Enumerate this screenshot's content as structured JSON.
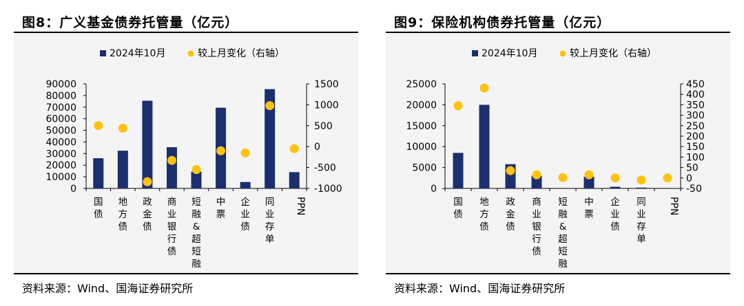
{
  "colors": {
    "bar": "#1b2f6e",
    "dot": "#ffc20e",
    "axis": "#000000",
    "background": "#f4f4f4"
  },
  "figures": [
    {
      "title": "图8：广义基金债券托管量（亿元）",
      "source": "资料来源：Wind、国海证券研究所",
      "chart_data": {
        "type": "bar+scatter",
        "categories": [
          "国债",
          "地方债",
          "政金债",
          "商业银行债",
          "短融&超短融",
          "中票",
          "企业债",
          "同业存单",
          "PPN"
        ],
        "series": [
          {
            "name": "2024年10月",
            "kind": "bar",
            "axis": "left",
            "values": [
              26000,
              32500,
              75500,
              35500,
              14500,
              69500,
              5500,
              85500,
              14000
            ]
          },
          {
            "name": "较上月变化（右轴）",
            "kind": "scatter",
            "axis": "right",
            "values": [
              500,
              440,
              -840,
              -330,
              -550,
              -100,
              -150,
              980,
              -50
            ]
          }
        ],
        "y_left": {
          "min": 0,
          "max": 90000,
          "ticks": [
            0,
            10000,
            20000,
            30000,
            40000,
            50000,
            60000,
            70000,
            80000,
            90000
          ]
        },
        "y_right": {
          "min": -1000,
          "max": 1500,
          "ticks": [
            -1000,
            -500,
            0,
            500,
            1000,
            1500
          ]
        },
        "legend_position": "top"
      }
    },
    {
      "title": "图9：保险机构债券托管量（亿元）",
      "source": "资料来源：Wind、国海证券研究所",
      "chart_data": {
        "type": "bar+scatter",
        "categories": [
          "国债",
          "地方债",
          "政金债",
          "商业银行债",
          "短融&超短融",
          "中票",
          "企业债",
          "同业存单",
          "PPN"
        ],
        "series": [
          {
            "name": "2024年10月",
            "kind": "bar",
            "axis": "left",
            "values": [
              8500,
              20000,
              5800,
              3000,
              0,
              2800,
              400,
              200,
              0
            ]
          },
          {
            "name": "较上月变化（右轴）",
            "kind": "scatter",
            "axis": "right",
            "values": [
              345,
              430,
              35,
              15,
              2,
              15,
              0,
              -10,
              0
            ]
          }
        ],
        "y_left": {
          "min": 0,
          "max": 25000,
          "ticks": [
            0,
            5000,
            10000,
            15000,
            20000,
            25000
          ]
        },
        "y_right": {
          "min": -50,
          "max": 450,
          "ticks": [
            -50,
            0,
            50,
            100,
            150,
            200,
            250,
            300,
            350,
            400,
            450
          ]
        },
        "legend_position": "top"
      }
    }
  ]
}
